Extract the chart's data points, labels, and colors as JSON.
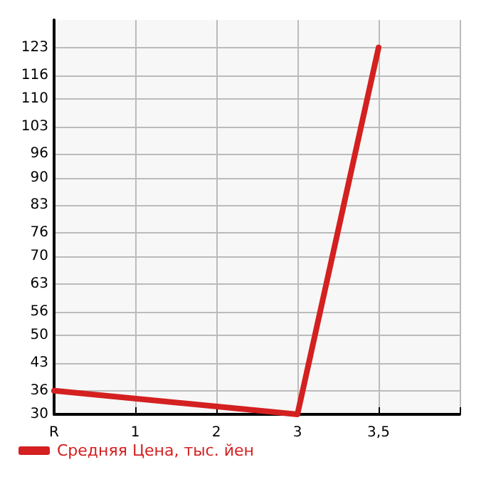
{
  "chart_data": {
    "type": "line",
    "categories": [
      "R",
      "1",
      "2",
      "3",
      "3,5",
      null
    ],
    "series": [
      {
        "name": "Средняя Цена, тыс. йен",
        "color": "#d42020",
        "values": [
          36,
          null,
          null,
          30,
          123,
          null
        ]
      }
    ],
    "ylim": [
      30,
      130
    ],
    "yticks": [
      30,
      36,
      43,
      50,
      56,
      63,
      70,
      76,
      83,
      90,
      96,
      103,
      110,
      116,
      123
    ],
    "grid": true,
    "legend": "bottom left",
    "marker": "none",
    "line_style": "solid"
  }
}
